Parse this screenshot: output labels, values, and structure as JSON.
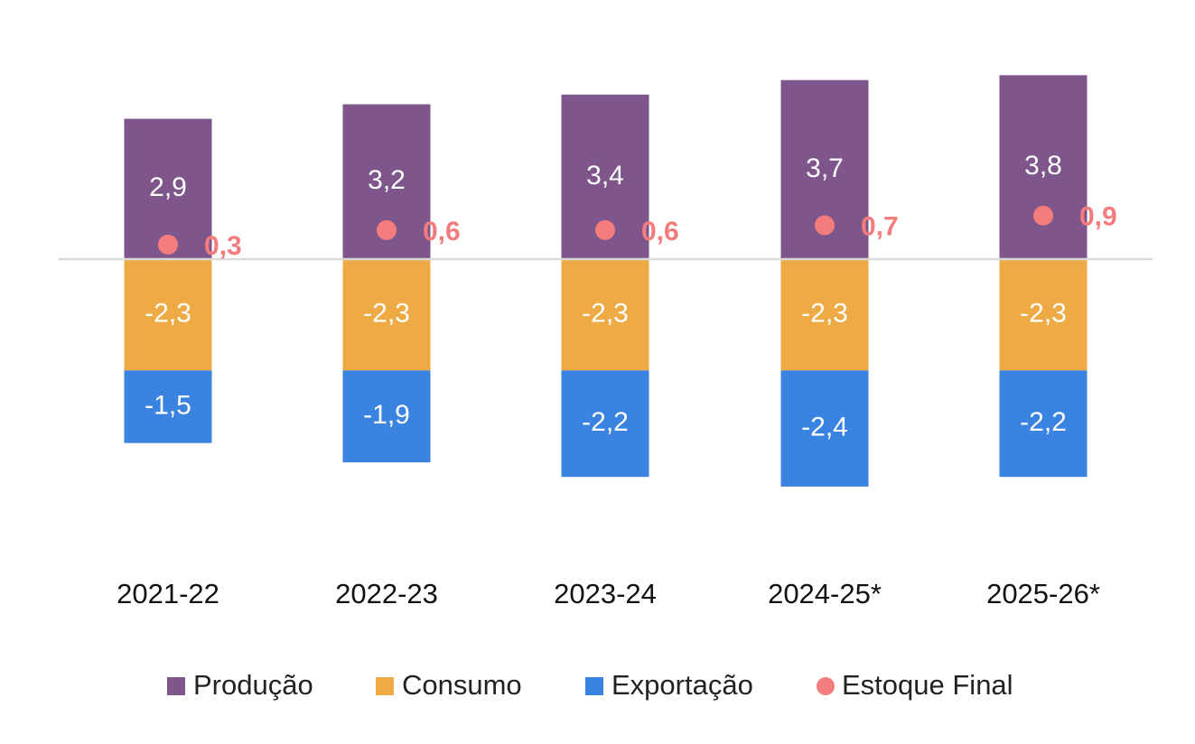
{
  "chart_data": {
    "type": "bar",
    "stacked": true,
    "categories": [
      "2021-22",
      "2022-23",
      "2023-24",
      "2024-25*",
      "2025-26*"
    ],
    "series": [
      {
        "name": "Produção",
        "kind": "bar",
        "color": "#7e568b",
        "values": [
          2.9,
          3.2,
          3.4,
          3.7,
          3.8
        ],
        "labels": [
          "2,9",
          "3,2",
          "3,4",
          "3,7",
          "3,8"
        ]
      },
      {
        "name": "Consumo",
        "kind": "bar",
        "color": "#edaa45",
        "values": [
          -2.3,
          -2.3,
          -2.3,
          -2.3,
          -2.3
        ],
        "labels": [
          "-2,3",
          "-2,3",
          "-2,3",
          "-2,3",
          "-2,3"
        ]
      },
      {
        "name": "Exportação",
        "kind": "bar",
        "color": "#3a83e0",
        "values": [
          -1.5,
          -1.9,
          -2.2,
          -2.4,
          -2.2
        ],
        "labels": [
          "-1,5",
          "-1,9",
          "-2,2",
          "-2,4",
          "-2,2"
        ]
      },
      {
        "name": "Estoque Final",
        "kind": "marker",
        "color": "#f47c7c",
        "values": [
          0.3,
          0.6,
          0.6,
          0.7,
          0.9
        ],
        "labels": [
          "0,3",
          "0,6",
          "0,6",
          "0,7",
          "0,9"
        ]
      }
    ],
    "zero_line_color": "#d9d9d9",
    "legend_position": "bottom",
    "grid": false
  }
}
